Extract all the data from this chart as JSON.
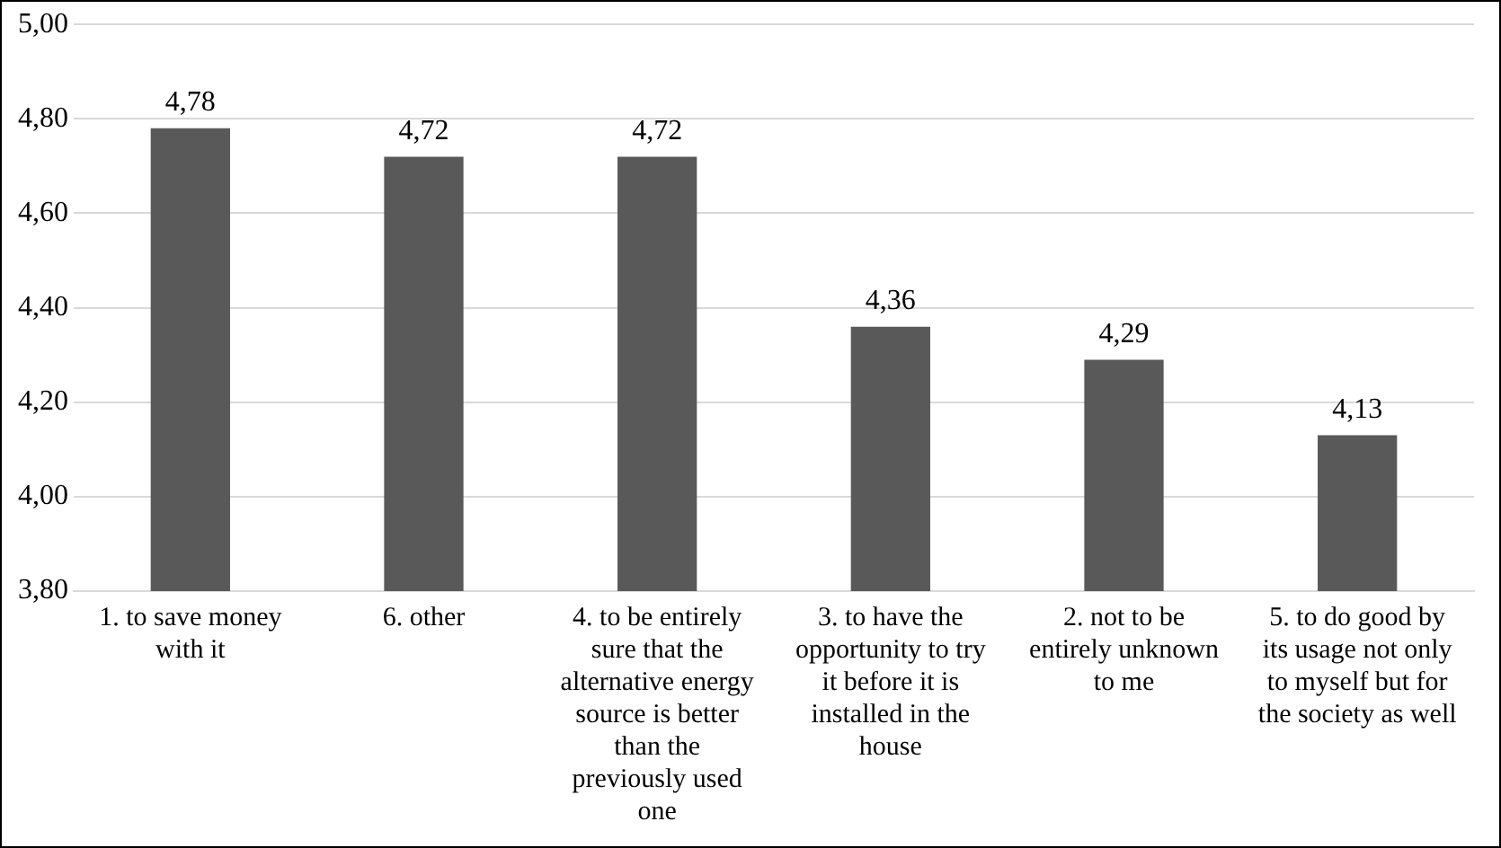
{
  "chart_data": {
    "type": "bar",
    "categories": [
      "1. to save money with it",
      "6. other",
      "4. to be entirely sure that the alternative energy source is better than the previously used one",
      "3. to have the opportunity to try it before it is installed in the house",
      "2. not to be entirely unknown to me",
      "5. to do good by its usage not only to myself but for the society as well"
    ],
    "values": [
      4.78,
      4.72,
      4.72,
      4.36,
      4.29,
      4.13
    ],
    "value_labels": [
      "4,78",
      "4,72",
      "4,72",
      "4,36",
      "4,29",
      "4,13"
    ],
    "color": "#595959",
    "ylim": [
      3.8,
      5.0
    ],
    "yticks": [
      {
        "value": 3.8,
        "label": "3,80"
      },
      {
        "value": 4.0,
        "label": "4,00"
      },
      {
        "value": 4.2,
        "label": "4,20"
      },
      {
        "value": 4.4,
        "label": "4,40"
      },
      {
        "value": 4.6,
        "label": "4,60"
      },
      {
        "value": 4.8,
        "label": "4,80"
      },
      {
        "value": 5.0,
        "label": "5,00"
      }
    ],
    "grid": "y",
    "legend": false
  }
}
